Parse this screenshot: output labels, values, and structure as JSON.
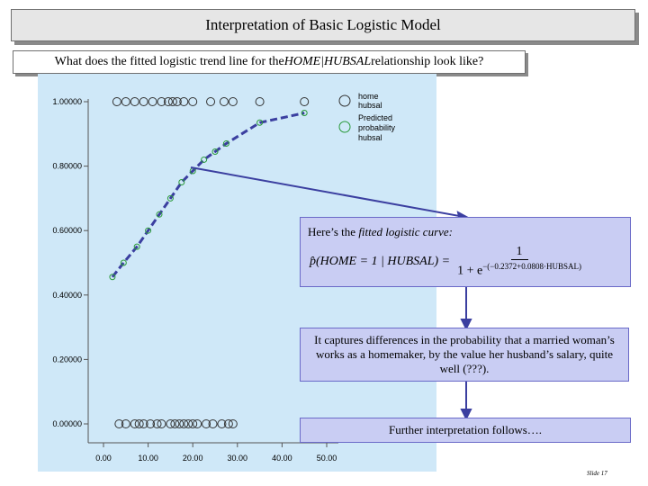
{
  "title": "Interpretation of Basic Logistic Model",
  "question": {
    "prefix": "What does the fitted logistic trend line for the ",
    "italic": "HOME|HUBSAL",
    "suffix": " relationship look like?"
  },
  "chart_data": {
    "type": "scatter",
    "x_ticks": [
      "0.00",
      "10.00",
      "20.00",
      "30.00",
      "40.00",
      "50.00"
    ],
    "y_ticks": [
      "0.00000",
      "0.20000",
      "0.40000",
      "0.60000",
      "0.80000",
      "1.00000"
    ],
    "xlim": [
      0,
      50
    ],
    "ylim": [
      0,
      1
    ],
    "series": [
      {
        "name": "home hubsal",
        "marker": "open-circle",
        "points": [
          [
            3,
            1
          ],
          [
            5,
            1
          ],
          [
            7,
            1
          ],
          [
            9,
            1
          ],
          [
            11,
            1
          ],
          [
            13,
            1
          ],
          [
            14.5,
            1
          ],
          [
            15.5,
            1
          ],
          [
            16.5,
            1
          ],
          [
            18,
            1
          ],
          [
            20,
            1
          ],
          [
            24,
            1
          ],
          [
            27,
            1
          ],
          [
            29,
            1
          ],
          [
            35,
            1
          ],
          [
            45,
            1
          ],
          [
            3.5,
            0
          ],
          [
            5,
            0
          ],
          [
            7,
            0
          ],
          [
            8,
            0
          ],
          [
            9,
            0
          ],
          [
            10.5,
            0
          ],
          [
            12,
            0
          ],
          [
            13,
            0
          ],
          [
            15,
            0
          ],
          [
            16,
            0
          ],
          [
            17,
            0
          ],
          [
            18,
            0
          ],
          [
            19,
            0
          ],
          [
            20,
            0
          ],
          [
            21,
            0
          ],
          [
            23,
            0
          ],
          [
            24.5,
            0
          ],
          [
            26.5,
            0
          ],
          [
            28,
            0
          ],
          [
            29,
            0
          ]
        ]
      },
      {
        "name": "Predicted probability hubsal",
        "marker": "open-circle-green",
        "points": [
          [
            2,
            0.456
          ],
          [
            4.5,
            0.5
          ],
          [
            7.5,
            0.55
          ],
          [
            10,
            0.6
          ],
          [
            12.5,
            0.65
          ],
          [
            15,
            0.7
          ],
          [
            17.5,
            0.75
          ],
          [
            20,
            0.785
          ],
          [
            22.5,
            0.82
          ],
          [
            25,
            0.845
          ],
          [
            27.5,
            0.87
          ],
          [
            35,
            0.935
          ],
          [
            45,
            0.965
          ]
        ]
      }
    ],
    "legend": [
      "home hubsal",
      "Predicted probability hubsal"
    ]
  },
  "note1": {
    "prefix": "Here’s the ",
    "italic": "fitted logistic curve:",
    "lhs": "p̂(HOME = 1 | HUBSAL) =",
    "numerator": "1",
    "den_base": "1 + e",
    "exponent": "−(−0.2372+0.0808·HUBSAL)"
  },
  "note2": "It captures differences in the probability that a married woman’s works as a homemaker, by the value her husband’s salary, quite well (???).",
  "note3": "Further interpretation follows….",
  "slide_number": "Slide 17",
  "colors": {
    "plot_bg": "#cfe8f8",
    "curve": "#3b3fa0",
    "note_fill": "#c9cdf3",
    "marker_green": "#2a9a3a"
  }
}
